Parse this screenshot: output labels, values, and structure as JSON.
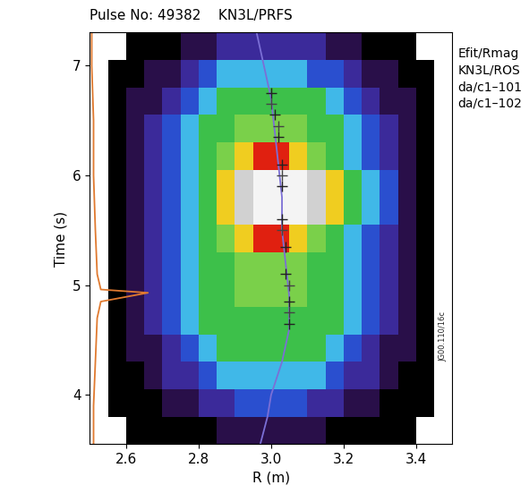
{
  "chart_data": {
    "type": "heatmap",
    "title": "Pulse No: 49382    KN3L/PRFS",
    "x_label": "R (m)",
    "y_label": "Time (s)",
    "annotation": "JG00.110/16c",
    "xlim": [
      2.5,
      3.5
    ],
    "xticks": [
      2.6,
      2.8,
      3.0,
      3.2,
      3.4
    ],
    "ylim": [
      3.55,
      7.3
    ],
    "yticks": [
      4,
      5,
      6,
      7
    ],
    "x_edges": [
      2.5,
      2.55,
      2.6,
      2.65,
      2.7,
      2.75,
      2.8,
      2.85,
      2.9,
      2.95,
      3.0,
      3.05,
      3.1,
      3.15,
      3.2,
      3.25,
      3.3,
      3.35,
      3.4,
      3.45,
      3.5
    ],
    "y_edges": [
      3.55,
      3.8,
      4.05,
      4.3,
      4.55,
      4.8,
      5.05,
      5.3,
      5.55,
      5.8,
      6.05,
      6.3,
      6.55,
      6.8,
      7.05,
      7.3
    ],
    "color_range": [
      0,
      10
    ],
    "colors": [
      "#000000",
      "#2a0f4a",
      "#3b2a9a",
      "#2a50d0",
      "#40b8e8",
      "#3cc04a",
      "#7ad04a",
      "#f0d020",
      "#e02010",
      "#d0d0d0",
      "#f4f4f4"
    ],
    "cells": [
      [
        null,
        null,
        0,
        0,
        0,
        0,
        0,
        1,
        1,
        1,
        1,
        1,
        1,
        0,
        0,
        0,
        0,
        0,
        null,
        null
      ],
      [
        null,
        0,
        0,
        0,
        1,
        1,
        2,
        2,
        3,
        3,
        3,
        3,
        2,
        2,
        1,
        1,
        0,
        0,
        0,
        null
      ],
      [
        null,
        0,
        0,
        1,
        2,
        2,
        3,
        4,
        4,
        4,
        4,
        4,
        4,
        3,
        2,
        2,
        1,
        0,
        0,
        null
      ],
      [
        null,
        0,
        1,
        1,
        2,
        3,
        4,
        5,
        5,
        5,
        5,
        5,
        5,
        4,
        3,
        2,
        1,
        1,
        0,
        null
      ],
      [
        null,
        0,
        1,
        2,
        3,
        4,
        5,
        5,
        5,
        5,
        5,
        5,
        5,
        5,
        4,
        3,
        2,
        1,
        0,
        null
      ],
      [
        null,
        0,
        1,
        2,
        3,
        4,
        5,
        5,
        6,
        6,
        6,
        6,
        5,
        5,
        4,
        3,
        2,
        1,
        0,
        null
      ],
      [
        null,
        0,
        1,
        2,
        3,
        4,
        5,
        5,
        6,
        6,
        6,
        6,
        5,
        5,
        4,
        3,
        2,
        1,
        0,
        null
      ],
      [
        null,
        0,
        1,
        2,
        3,
        4,
        5,
        6,
        7,
        8,
        8,
        7,
        6,
        5,
        4,
        3,
        2,
        1,
        0,
        null
      ],
      [
        null,
        0,
        1,
        2,
        3,
        4,
        5,
        7,
        9,
        10,
        10,
        10,
        9,
        7,
        5,
        4,
        3,
        1,
        0,
        null
      ],
      [
        null,
        0,
        1,
        2,
        3,
        4,
        5,
        7,
        9,
        10,
        10,
        10,
        9,
        7,
        5,
        4,
        3,
        1,
        0,
        null
      ],
      [
        null,
        0,
        1,
        2,
        3,
        4,
        5,
        6,
        7,
        8,
        8,
        7,
        6,
        5,
        4,
        3,
        2,
        1,
        0,
        null
      ],
      [
        null,
        0,
        1,
        2,
        3,
        4,
        5,
        5,
        6,
        6,
        6,
        6,
        5,
        5,
        4,
        3,
        2,
        1,
        0,
        null
      ],
      [
        null,
        0,
        1,
        1,
        2,
        3,
        4,
        5,
        5,
        5,
        5,
        5,
        5,
        4,
        3,
        2,
        1,
        1,
        0,
        null
      ],
      [
        null,
        0,
        0,
        1,
        1,
        2,
        3,
        4,
        4,
        4,
        4,
        4,
        3,
        3,
        2,
        1,
        1,
        0,
        0,
        null
      ],
      [
        null,
        null,
        0,
        0,
        0,
        1,
        1,
        2,
        2,
        2,
        2,
        2,
        2,
        1,
        1,
        0,
        0,
        0,
        null,
        null
      ]
    ],
    "series": [
      {
        "name": "Efit/Rmag",
        "type": "line",
        "color": "#7b6fd6",
        "line_style": "solid",
        "marker": "none",
        "x": [
          2.97,
          2.99,
          3.0,
          3.03,
          3.05,
          3.05,
          3.04,
          3.03,
          3.03,
          3.02,
          3.01,
          3.0,
          2.98,
          2.96
        ],
        "y": [
          3.55,
          3.8,
          4.0,
          4.3,
          4.6,
          4.9,
          5.2,
          5.5,
          5.8,
          6.1,
          6.4,
          6.7,
          7.0,
          7.3
        ]
      },
      {
        "name": "KN3L/ROS",
        "type": "line",
        "color": "#e07a30",
        "line_style": "solid",
        "marker": "none",
        "x": [
          2.51,
          2.51,
          2.515,
          2.52,
          2.53,
          2.66,
          2.53,
          2.52,
          2.515,
          2.51,
          2.51,
          2.505,
          2.505
        ],
        "y": [
          3.55,
          3.9,
          4.3,
          4.7,
          4.85,
          4.93,
          4.96,
          5.1,
          5.5,
          6.0,
          6.5,
          7.0,
          7.3
        ]
      },
      {
        "name": "da/c1–101",
        "type": "scatter",
        "color": "#222222",
        "marker": "plus",
        "x": [
          3.05,
          3.05,
          3.04,
          3.04,
          3.03,
          3.03,
          3.03,
          3.02,
          3.01,
          3.0
        ],
        "y": [
          4.65,
          4.85,
          5.1,
          5.35,
          5.6,
          5.9,
          6.1,
          6.35,
          6.55,
          6.75
        ]
      },
      {
        "name": "da/c1–102",
        "type": "scatter",
        "color": "#444444",
        "marker": "plus",
        "x": [
          3.05,
          3.05,
          3.03,
          3.03,
          3.02,
          3.0
        ],
        "y": [
          4.75,
          5.0,
          5.5,
          6.0,
          6.45,
          6.65
        ]
      }
    ]
  }
}
